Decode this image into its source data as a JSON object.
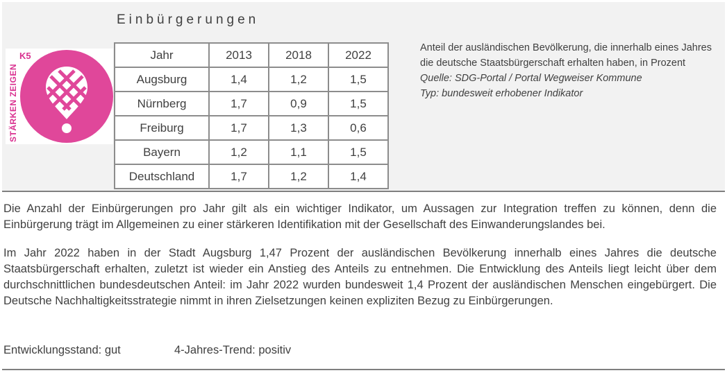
{
  "title": "Einbürgerungen",
  "logo": {
    "code": "K5",
    "vertical_text": "STÄRKEN ZEIGEN",
    "colors": {
      "accent": "#d9308f",
      "circle": "#e0479a"
    },
    "icon": "map-pin-grid-icon"
  },
  "table": {
    "headers": [
      "Jahr",
      "2013",
      "2018",
      "2022"
    ],
    "rows": [
      [
        "Augsburg",
        "1,4",
        "1,2",
        "1,5"
      ],
      [
        "Nürnberg",
        "1,7",
        "0,9",
        "1,5"
      ],
      [
        "Freiburg",
        "1,7",
        "1,3",
        "0,6"
      ],
      [
        "Bayern",
        "1,2",
        "1,1",
        "1,5"
      ],
      [
        "Deutschland",
        "1,7",
        "1,2",
        "1,4"
      ]
    ]
  },
  "description": {
    "text": "Anteil  der ausländischen Bevölkerung, die innerhalb eines Jahres die deutsche Staatsbürgerschaft erhalten haben, in Prozent",
    "source": "Quelle: SDG-Portal / Portal Wegweiser Kommune",
    "type": "Typ: bundesweit erhobener Indikator"
  },
  "paragraphs": [
    "Die Anzahl der Einbürgerungen pro Jahr gilt als ein wichtiger Indikator, um Aussagen zur Integration treffen zu können, denn die Einbürgerung trägt im Allgemeinen zu einer stärkeren Identifikation mit der Gesellschaft des Einwanderungslandes bei.",
    "Im Jahr 2022 haben in der Stadt Augsburg 1,47 Prozent der ausländischen Bevölkerung innerhalb eines Jahres die deutsche Staatsbürgerschaft erhalten, zuletzt ist wieder ein Anstieg des Anteils zu entnehmen. Die Entwicklung des Anteils liegt leicht über dem durchschnittlichen bundesdeutschen Anteil: im Jahr 2022 wurden bundesweit 1,4 Prozent der ausländischen Menschen eingebürgert. Die Deutsche Nachhaltigkeitsstrategie nimmt in ihren Zielsetzungen keinen expliziten Bezug zu Einbürgerungen."
  ],
  "status": {
    "development": "Entwicklungsstand: gut",
    "trend": "4-Jahres-Trend: positiv"
  }
}
